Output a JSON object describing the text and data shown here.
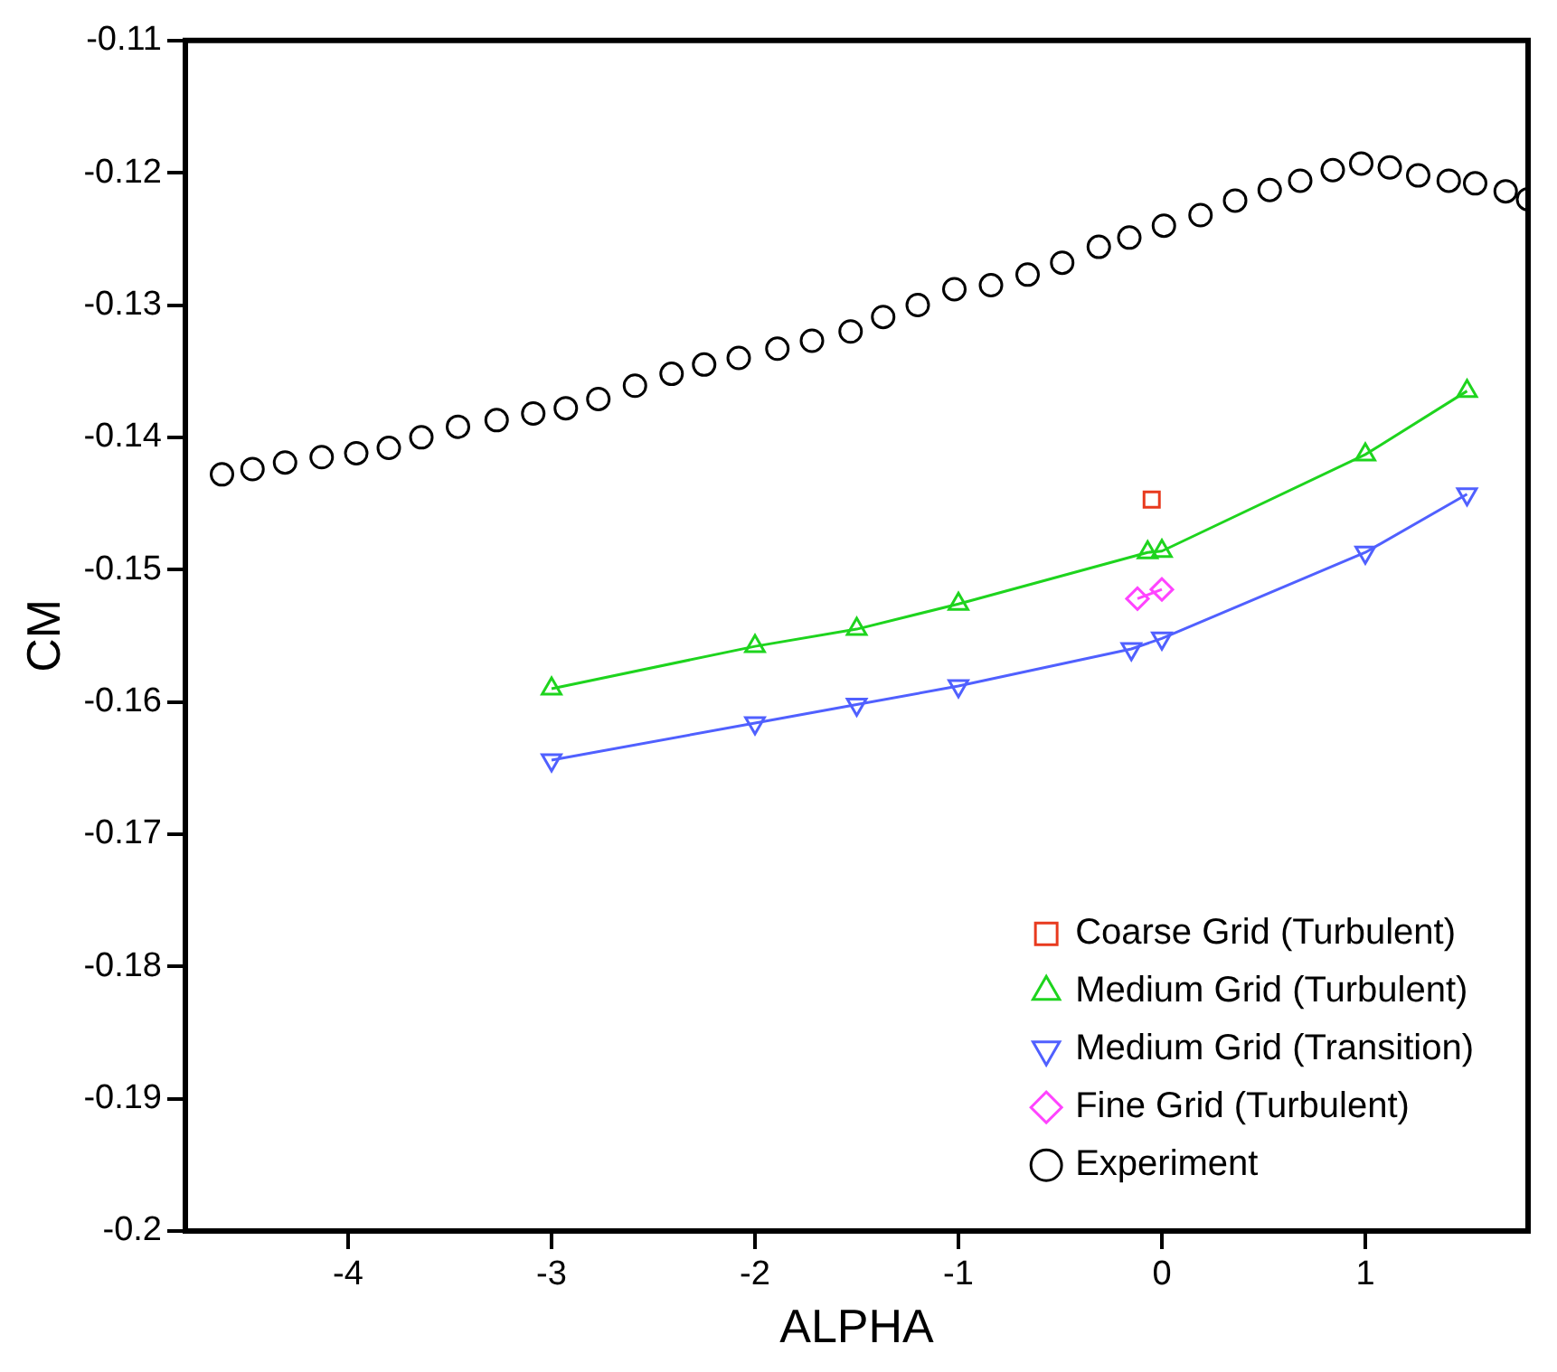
{
  "chart_data": {
    "type": "line",
    "xlabel": "ALPHA",
    "ylabel": "CM",
    "xlim": [
      -4.8,
      1.8
    ],
    "xticks": [
      -4,
      -3,
      -2,
      -1,
      0,
      1
    ],
    "ylim": [
      -0.2,
      -0.11
    ],
    "yticks": [
      -0.2,
      -0.19,
      -0.18,
      -0.17,
      -0.16,
      -0.15,
      -0.14,
      -0.13,
      -0.12,
      -0.11
    ],
    "grid": false,
    "legend": "bottom right",
    "series": [
      {
        "name": "Coarse Grid (Turbulent)",
        "color": "#e83a1e",
        "type": "line",
        "marker": "square",
        "x": [
          -0.05
        ],
        "values": [
          -0.1447
        ]
      },
      {
        "name": "Medium Grid (Turbulent)",
        "color": "#1ed41e",
        "type": "line",
        "marker": "triangle",
        "x": [
          -3,
          -2,
          -1.5,
          -1,
          -0.07,
          0,
          1,
          1.5
        ],
        "values": [
          -0.159,
          -0.1558,
          -0.1545,
          -0.1526,
          -0.1487,
          -0.1486,
          -0.1413,
          -0.1365
        ]
      },
      {
        "name": "Medium Grid (Transition)",
        "color": "#5060ff",
        "type": "line",
        "marker": "triangle-down",
        "x": [
          -3,
          -2,
          -1.5,
          -1,
          -0.15,
          0,
          1,
          1.5
        ],
        "values": [
          -0.1644,
          -0.1616,
          -0.1602,
          -0.1588,
          -0.156,
          -0.1552,
          -0.1487,
          -0.1443
        ]
      },
      {
        "name": "Fine Grid (Turbulent)",
        "color": "#ff44ff",
        "type": "line",
        "marker": "diamond",
        "x": [
          -0.12,
          0
        ],
        "values": [
          -0.1522,
          -0.1515
        ]
      },
      {
        "name": "Experiment",
        "color": "#000000",
        "type": "scatter",
        "marker": "circle",
        "x": [
          -4.62,
          -4.47,
          -4.31,
          -4.13,
          -3.96,
          -3.8,
          -3.64,
          -3.46,
          -3.27,
          -3.09,
          -2.93,
          -2.77,
          -2.59,
          -2.41,
          -2.25,
          -2.08,
          -1.89,
          -1.72,
          -1.53,
          -1.37,
          -1.2,
          -1.02,
          -0.84,
          -0.66,
          -0.49,
          -0.31,
          -0.16,
          0.01,
          0.19,
          0.36,
          0.53,
          0.68,
          0.84,
          0.98,
          1.12,
          1.26,
          1.41,
          1.54,
          1.69,
          1.8
        ],
        "values": [
          -0.1428,
          -0.1424,
          -0.1419,
          -0.1415,
          -0.1412,
          -0.1408,
          -0.14,
          -0.1392,
          -0.1387,
          -0.1382,
          -0.1378,
          -0.1371,
          -0.1361,
          -0.1352,
          -0.1345,
          -0.134,
          -0.1333,
          -0.1327,
          -0.132,
          -0.1309,
          -0.13,
          -0.1288,
          -0.1285,
          -0.1277,
          -0.1268,
          -0.1256,
          -0.1249,
          -0.124,
          -0.1232,
          -0.1221,
          -0.1213,
          -0.1206,
          -0.1198,
          -0.1193,
          -0.1196,
          -0.1202,
          -0.1206,
          -0.1208,
          -0.1214,
          -0.122
        ]
      }
    ]
  }
}
